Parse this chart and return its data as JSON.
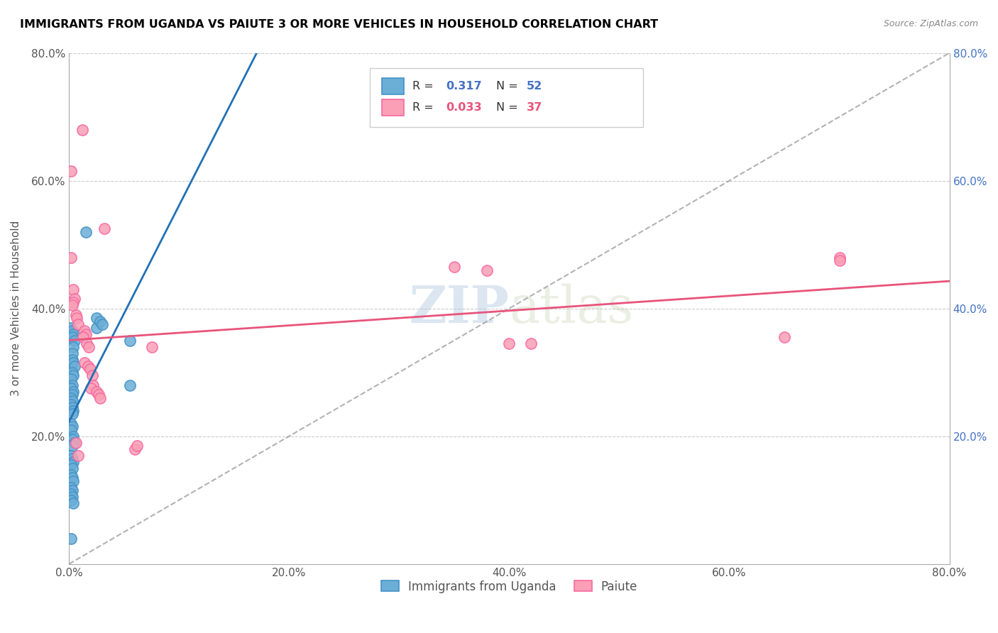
{
  "title": "IMMIGRANTS FROM UGANDA VS PAIUTE 3 OR MORE VEHICLES IN HOUSEHOLD CORRELATION CHART",
  "source": "Source: ZipAtlas.com",
  "ylabel": "3 or more Vehicles in Household",
  "xmin": 0.0,
  "xmax": 0.8,
  "ymin": 0.0,
  "ymax": 0.8,
  "xtick_labels": [
    "0.0%",
    "20.0%",
    "40.0%",
    "60.0%",
    "80.0%"
  ],
  "xtick_vals": [
    0.0,
    0.2,
    0.4,
    0.6,
    0.8
  ],
  "ytick_labels": [
    "20.0%",
    "40.0%",
    "60.0%",
    "80.0%"
  ],
  "ytick_vals": [
    0.2,
    0.4,
    0.6,
    0.8
  ],
  "right_ytick_labels": [
    "20.0%",
    "40.0%",
    "60.0%",
    "80.0%"
  ],
  "right_ytick_vals": [
    0.2,
    0.4,
    0.6,
    0.8
  ],
  "legend_blue_label": "Immigrants from Uganda",
  "legend_pink_label": "Paiute",
  "R_blue": 0.317,
  "N_blue": 52,
  "R_pink": 0.033,
  "N_pink": 37,
  "blue_color": "#6baed6",
  "pink_color": "#fa9fb5",
  "blue_edge": "#4292c6",
  "pink_edge": "#f768a1",
  "blue_trend_color": "#2171b5",
  "pink_trend_color": "#e8547a",
  "watermark_zip": "ZIP",
  "watermark_atlas": "atlas",
  "scatter_blue": [
    [
      0.002,
      0.37
    ],
    [
      0.003,
      0.365
    ],
    [
      0.004,
      0.36
    ],
    [
      0.003,
      0.355
    ],
    [
      0.005,
      0.35
    ],
    [
      0.004,
      0.34
    ],
    [
      0.003,
      0.33
    ],
    [
      0.003,
      0.32
    ],
    [
      0.004,
      0.315
    ],
    [
      0.005,
      0.31
    ],
    [
      0.003,
      0.3
    ],
    [
      0.004,
      0.295
    ],
    [
      0.002,
      0.29
    ],
    [
      0.003,
      0.28
    ],
    [
      0.002,
      0.275
    ],
    [
      0.004,
      0.27
    ],
    [
      0.003,
      0.265
    ],
    [
      0.002,
      0.26
    ],
    [
      0.003,
      0.255
    ],
    [
      0.002,
      0.25
    ],
    [
      0.003,
      0.245
    ],
    [
      0.004,
      0.24
    ],
    [
      0.003,
      0.235
    ],
    [
      0.002,
      0.22
    ],
    [
      0.003,
      0.215
    ],
    [
      0.002,
      0.21
    ],
    [
      0.004,
      0.2
    ],
    [
      0.003,
      0.195
    ],
    [
      0.005,
      0.19
    ],
    [
      0.003,
      0.185
    ],
    [
      0.002,
      0.17
    ],
    [
      0.003,
      0.165
    ],
    [
      0.004,
      0.16
    ],
    [
      0.002,
      0.155
    ],
    [
      0.003,
      0.15
    ],
    [
      0.002,
      0.14
    ],
    [
      0.003,
      0.135
    ],
    [
      0.004,
      0.13
    ],
    [
      0.002,
      0.12
    ],
    [
      0.003,
      0.115
    ],
    [
      0.002,
      0.11
    ],
    [
      0.003,
      0.105
    ],
    [
      0.002,
      0.1
    ],
    [
      0.004,
      0.095
    ],
    [
      0.025,
      0.385
    ],
    [
      0.025,
      0.37
    ],
    [
      0.028,
      0.38
    ],
    [
      0.03,
      0.375
    ],
    [
      0.015,
      0.52
    ],
    [
      0.055,
      0.35
    ],
    [
      0.055,
      0.28
    ],
    [
      0.002,
      0.04
    ]
  ],
  "scatter_pink": [
    [
      0.002,
      0.615
    ],
    [
      0.012,
      0.68
    ],
    [
      0.002,
      0.48
    ],
    [
      0.004,
      0.43
    ],
    [
      0.005,
      0.415
    ],
    [
      0.004,
      0.41
    ],
    [
      0.003,
      0.405
    ],
    [
      0.006,
      0.39
    ],
    [
      0.007,
      0.385
    ],
    [
      0.008,
      0.375
    ],
    [
      0.014,
      0.365
    ],
    [
      0.015,
      0.36
    ],
    [
      0.013,
      0.355
    ],
    [
      0.016,
      0.345
    ],
    [
      0.018,
      0.34
    ],
    [
      0.014,
      0.315
    ],
    [
      0.017,
      0.31
    ],
    [
      0.019,
      0.305
    ],
    [
      0.021,
      0.295
    ],
    [
      0.022,
      0.28
    ],
    [
      0.02,
      0.275
    ],
    [
      0.025,
      0.27
    ],
    [
      0.027,
      0.265
    ],
    [
      0.028,
      0.26
    ],
    [
      0.032,
      0.525
    ],
    [
      0.06,
      0.18
    ],
    [
      0.062,
      0.185
    ],
    [
      0.35,
      0.465
    ],
    [
      0.38,
      0.46
    ],
    [
      0.4,
      0.345
    ],
    [
      0.42,
      0.345
    ],
    [
      0.65,
      0.355
    ],
    [
      0.7,
      0.48
    ],
    [
      0.7,
      0.475
    ],
    [
      0.006,
      0.19
    ],
    [
      0.008,
      0.17
    ],
    [
      0.075,
      0.34
    ]
  ]
}
